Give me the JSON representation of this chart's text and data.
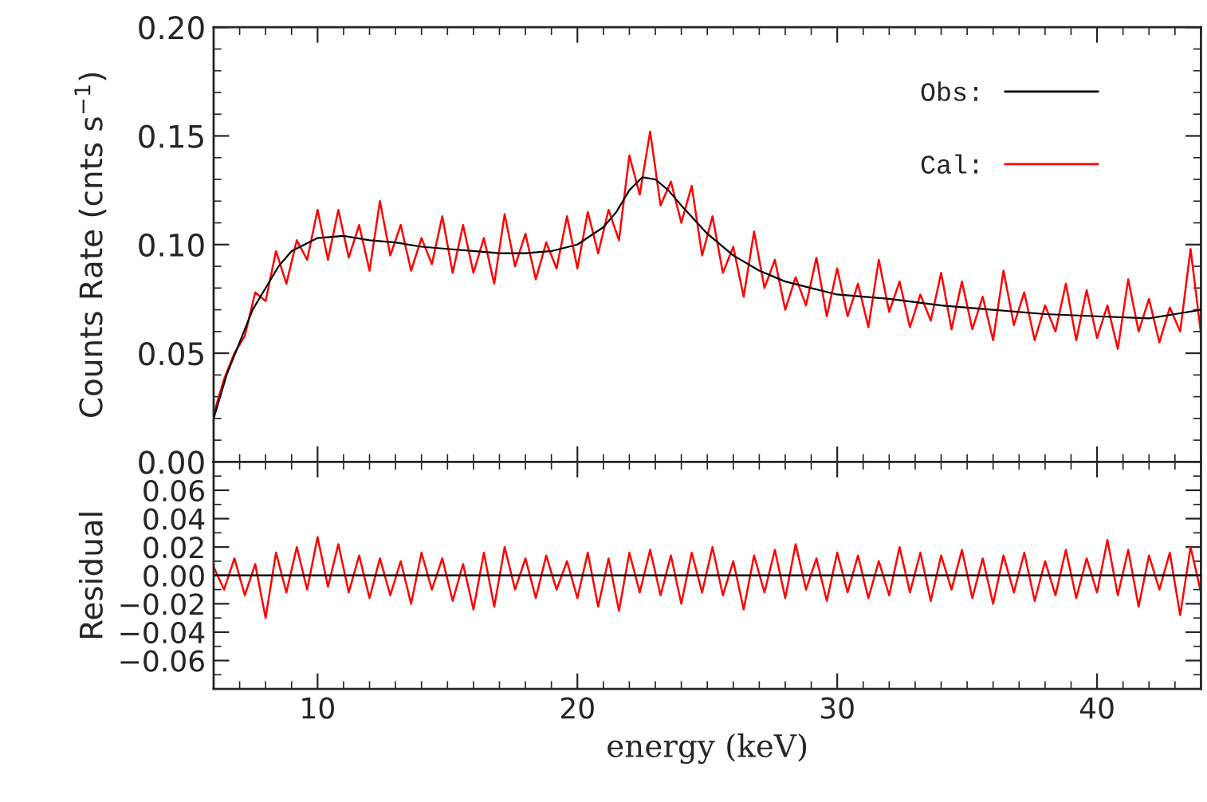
{
  "chart_data": [
    {
      "type": "line",
      "ylabel": "Counts Rate (cnts s$^{−1}$)",
      "xlim": [
        6,
        44
      ],
      "xticks": [
        10,
        20,
        30,
        40
      ],
      "ylim": [
        0,
        0.2
      ],
      "yticks": [
        {
          "value": 0,
          "label": "0.00"
        },
        {
          "value": 0.05,
          "label": "0.05"
        },
        {
          "value": 0.1,
          "label": "0.10"
        },
        {
          "value": 0.15,
          "label": "0.15"
        },
        {
          "value": 0.2,
          "label": "0.20"
        }
      ],
      "tick_labels": "y",
      "legend": "top right",
      "grid": false,
      "series": [
        {
          "name": "Cal:",
          "color": "#ff0000",
          "x": [
            6.0,
            6.4,
            6.8,
            7.2,
            7.6,
            8.0,
            8.4,
            8.8,
            9.2,
            9.6,
            10.0,
            10.4,
            10.8,
            11.2,
            11.6,
            12.0,
            12.4,
            12.8,
            13.2,
            13.6,
            14.0,
            14.4,
            14.8,
            15.2,
            15.6,
            16.0,
            16.4,
            16.8,
            17.2,
            17.6,
            18.0,
            18.4,
            18.8,
            19.2,
            19.6,
            20.0,
            20.4,
            20.8,
            21.2,
            21.6,
            22.0,
            22.4,
            22.8,
            23.2,
            23.6,
            24.0,
            24.4,
            24.8,
            25.2,
            25.6,
            26.0,
            26.4,
            26.8,
            27.2,
            27.6,
            28.0,
            28.4,
            28.8,
            29.2,
            29.6,
            30.0,
            30.4,
            30.8,
            31.2,
            31.6,
            32.0,
            32.4,
            32.8,
            33.2,
            33.6,
            34.0,
            34.4,
            34.8,
            35.2,
            35.6,
            36.0,
            36.4,
            36.8,
            37.2,
            37.6,
            38.0,
            38.4,
            38.8,
            39.2,
            39.6,
            40.0,
            40.4,
            40.8,
            41.2,
            41.6,
            42.0,
            42.4,
            42.8,
            43.2,
            43.6,
            44.0
          ],
          "values": [
            0.022,
            0.038,
            0.05,
            0.058,
            0.078,
            0.074,
            0.097,
            0.082,
            0.102,
            0.093,
            0.116,
            0.093,
            0.116,
            0.094,
            0.109,
            0.088,
            0.12,
            0.095,
            0.109,
            0.088,
            0.103,
            0.091,
            0.113,
            0.087,
            0.109,
            0.087,
            0.103,
            0.082,
            0.114,
            0.09,
            0.105,
            0.084,
            0.101,
            0.089,
            0.113,
            0.089,
            0.115,
            0.096,
            0.116,
            0.102,
            0.141,
            0.123,
            0.152,
            0.118,
            0.129,
            0.11,
            0.127,
            0.095,
            0.113,
            0.087,
            0.099,
            0.076,
            0.106,
            0.08,
            0.093,
            0.07,
            0.085,
            0.072,
            0.094,
            0.067,
            0.089,
            0.067,
            0.082,
            0.062,
            0.093,
            0.069,
            0.083,
            0.062,
            0.077,
            0.065,
            0.087,
            0.061,
            0.083,
            0.061,
            0.076,
            0.056,
            0.088,
            0.063,
            0.078,
            0.056,
            0.072,
            0.06,
            0.082,
            0.056,
            0.079,
            0.057,
            0.072,
            0.052,
            0.084,
            0.06,
            0.075,
            0.055,
            0.071,
            0.06,
            0.098,
            0.059
          ]
        },
        {
          "name": "Obs:",
          "color": "#000000",
          "x": [
            6,
            6.5,
            7,
            7.5,
            8,
            8.5,
            9,
            10,
            11,
            12,
            13,
            14,
            15,
            16,
            17,
            18,
            19,
            20,
            21,
            21.5,
            22,
            22.5,
            23,
            23.5,
            24,
            25,
            26,
            27,
            28,
            29,
            30,
            32,
            34,
            36,
            38,
            40,
            42,
            43,
            44
          ],
          "values": [
            0.02,
            0.04,
            0.055,
            0.07,
            0.08,
            0.09,
            0.097,
            0.103,
            0.104,
            0.102,
            0.101,
            0.099,
            0.098,
            0.097,
            0.096,
            0.096,
            0.097,
            0.1,
            0.108,
            0.115,
            0.125,
            0.131,
            0.13,
            0.125,
            0.118,
            0.105,
            0.095,
            0.088,
            0.083,
            0.08,
            0.077,
            0.075,
            0.072,
            0.07,
            0.068,
            0.067,
            0.066,
            0.068,
            0.07
          ]
        }
      ]
    },
    {
      "type": "line",
      "xlabel": "energy (keV)",
      "ylabel": "Residual",
      "xlim": [
        6,
        44
      ],
      "xticks": [
        10,
        20,
        30,
        40
      ],
      "ylim": [
        -0.08,
        0.08
      ],
      "yticks": [
        {
          "value": -0.06,
          "label": "−0.06"
        },
        {
          "value": -0.04,
          "label": "−0.04"
        },
        {
          "value": -0.02,
          "label": "−0.02"
        },
        {
          "value": 0,
          "label": "0.00"
        },
        {
          "value": 0.02,
          "label": "0.02"
        },
        {
          "value": 0.04,
          "label": "0.04"
        },
        {
          "value": 0.06,
          "label": "0.06"
        }
      ],
      "grid": false,
      "ref_lines": [
        {
          "axis": "y",
          "value": 0,
          "color": "#000000"
        }
      ],
      "series": [
        {
          "color": "#ff0000",
          "x": [
            6.0,
            6.4,
            6.8,
            7.2,
            7.6,
            8.0,
            8.4,
            8.8,
            9.2,
            9.6,
            10.0,
            10.4,
            10.8,
            11.2,
            11.6,
            12.0,
            12.4,
            12.8,
            13.2,
            13.6,
            14.0,
            14.4,
            14.8,
            15.2,
            15.6,
            16.0,
            16.4,
            16.8,
            17.2,
            17.6,
            18.0,
            18.4,
            18.8,
            19.2,
            19.6,
            20.0,
            20.4,
            20.8,
            21.2,
            21.6,
            22.0,
            22.4,
            22.8,
            23.2,
            23.6,
            24.0,
            24.4,
            24.8,
            25.2,
            25.6,
            26.0,
            26.4,
            26.8,
            27.2,
            27.6,
            28.0,
            28.4,
            28.8,
            29.2,
            29.6,
            30.0,
            30.4,
            30.8,
            31.2,
            31.6,
            32.0,
            32.4,
            32.8,
            33.2,
            33.6,
            34.0,
            34.4,
            34.8,
            35.2,
            35.6,
            36.0,
            36.4,
            36.8,
            37.2,
            37.6,
            38.0,
            38.4,
            38.8,
            39.2,
            39.6,
            40.0,
            40.4,
            40.8,
            41.2,
            41.6,
            42.0,
            42.4,
            42.8,
            43.2,
            43.6,
            44.0
          ],
          "values": [
            0.006,
            -0.01,
            0.012,
            -0.014,
            0.008,
            -0.03,
            0.016,
            -0.012,
            0.02,
            -0.01,
            0.027,
            -0.008,
            0.022,
            -0.012,
            0.014,
            -0.016,
            0.012,
            -0.014,
            0.01,
            -0.02,
            0.016,
            -0.01,
            0.012,
            -0.018,
            0.008,
            -0.024,
            0.016,
            -0.022,
            0.02,
            -0.01,
            0.012,
            -0.016,
            0.014,
            -0.01,
            0.01,
            -0.016,
            0.016,
            -0.022,
            0.012,
            -0.025,
            0.016,
            -0.012,
            0.018,
            -0.014,
            0.014,
            -0.02,
            0.016,
            -0.012,
            0.02,
            -0.014,
            0.01,
            -0.024,
            0.014,
            -0.012,
            0.018,
            -0.016,
            0.022,
            -0.01,
            0.012,
            -0.018,
            0.016,
            -0.012,
            0.014,
            -0.016,
            0.01,
            -0.014,
            0.02,
            -0.012,
            0.016,
            -0.018,
            0.014,
            -0.01,
            0.018,
            -0.016,
            0.012,
            -0.02,
            0.014,
            -0.012,
            0.016,
            -0.018,
            0.01,
            -0.014,
            0.018,
            -0.016,
            0.012,
            -0.012,
            0.025,
            -0.014,
            0.018,
            -0.022,
            0.014,
            -0.01,
            0.016,
            -0.028,
            0.02,
            -0.012
          ]
        }
      ]
    }
  ]
}
